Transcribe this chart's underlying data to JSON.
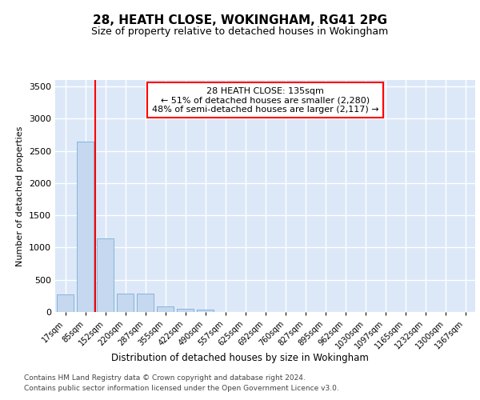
{
  "title": "28, HEATH CLOSE, WOKINGHAM, RG41 2PG",
  "subtitle": "Size of property relative to detached houses in Wokingham",
  "xlabel": "Distribution of detached houses by size in Wokingham",
  "ylabel": "Number of detached properties",
  "categories": [
    "17sqm",
    "85sqm",
    "152sqm",
    "220sqm",
    "287sqm",
    "355sqm",
    "422sqm",
    "490sqm",
    "557sqm",
    "625sqm",
    "692sqm",
    "760sqm",
    "827sqm",
    "895sqm",
    "962sqm",
    "1030sqm",
    "1097sqm",
    "1165sqm",
    "1232sqm",
    "1300sqm",
    "1367sqm"
  ],
  "values": [
    270,
    2640,
    1140,
    285,
    285,
    90,
    55,
    35,
    0,
    0,
    0,
    0,
    0,
    0,
    0,
    0,
    0,
    0,
    0,
    0,
    0
  ],
  "bar_color": "#c5d8f0",
  "bar_edgecolor": "#7aadd4",
  "background_color": "#dce8f8",
  "grid_color": "#ffffff",
  "red_line_x": 1.5,
  "annotation_text": "28 HEATH CLOSE: 135sqm\n← 51% of detached houses are smaller (2,280)\n48% of semi-detached houses are larger (2,117) →",
  "ylim": [
    0,
    3600
  ],
  "yticks": [
    0,
    500,
    1000,
    1500,
    2000,
    2500,
    3000,
    3500
  ],
  "footer_line1": "Contains HM Land Registry data © Crown copyright and database right 2024.",
  "footer_line2": "Contains public sector information licensed under the Open Government Licence v3.0."
}
